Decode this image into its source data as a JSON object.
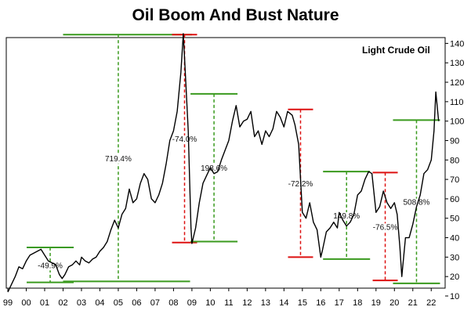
{
  "title": "Oil Boom And Bust Nature",
  "chart_data": {
    "type": "line",
    "title": "Oil Boom And Bust Nature",
    "series_label": "Light Crude Oil",
    "x_tick_labels": [
      "99",
      "00",
      "01",
      "02",
      "03",
      "04",
      "05",
      "06",
      "07",
      "08",
      "09",
      "10",
      "11",
      "12",
      "13",
      "14",
      "15",
      "16",
      "17",
      "18",
      "19",
      "20",
      "21",
      "22"
    ],
    "y_tick_labels": [
      "10",
      "20",
      "30",
      "40",
      "50",
      "60",
      "70",
      "80",
      "90",
      "100",
      "110",
      "120",
      "130",
      "140"
    ],
    "xlim": [
      1999.0,
      2022.5
    ],
    "ylim": [
      10,
      145
    ],
    "y_axis_side": "right",
    "colors": {
      "line": "#000000",
      "boom": "#3a9a1e",
      "bust": "#dd1111"
    },
    "series": [
      {
        "name": "Light Crude Oil",
        "x": [
          1999.0,
          1999.2,
          1999.4,
          1999.6,
          1999.8,
          2000.0,
          2000.2,
          2000.4,
          2000.6,
          2000.8,
          2001.0,
          2001.2,
          2001.4,
          2001.6,
          2001.8,
          2001.95,
          2002.1,
          2002.3,
          2002.5,
          2002.7,
          2002.9,
          2003.0,
          2003.2,
          2003.4,
          2003.6,
          2003.8,
          2004.0,
          2004.2,
          2004.4,
          2004.6,
          2004.8,
          2005.0,
          2005.2,
          2005.4,
          2005.6,
          2005.8,
          2006.0,
          2006.2,
          2006.4,
          2006.6,
          2006.8,
          2007.0,
          2007.2,
          2007.4,
          2007.6,
          2007.8,
          2008.0,
          2008.2,
          2008.4,
          2008.53,
          2008.65,
          2008.8,
          2008.95,
          2009.0,
          2009.2,
          2009.4,
          2009.6,
          2009.8,
          2010.0,
          2010.2,
          2010.4,
          2010.6,
          2010.8,
          2011.0,
          2011.2,
          2011.4,
          2011.6,
          2011.8,
          2012.0,
          2012.2,
          2012.4,
          2012.6,
          2012.8,
          2013.0,
          2013.2,
          2013.4,
          2013.6,
          2013.8,
          2014.0,
          2014.2,
          2014.45,
          2014.6,
          2014.8,
          2015.0,
          2015.2,
          2015.4,
          2015.6,
          2015.8,
          2016.0,
          2016.1,
          2016.3,
          2016.5,
          2016.7,
          2016.9,
          2017.0,
          2017.2,
          2017.4,
          2017.6,
          2017.8,
          2018.0,
          2018.2,
          2018.4,
          2018.6,
          2018.78,
          2019.0,
          2019.2,
          2019.4,
          2019.6,
          2019.8,
          2020.0,
          2020.15,
          2020.3,
          2020.4,
          2020.6,
          2020.8,
          2021.0,
          2021.2,
          2021.4,
          2021.6,
          2021.8,
          2022.0,
          2022.15,
          2022.25,
          2022.4
        ],
        "y": [
          12,
          16,
          20,
          25,
          24,
          28,
          31,
          32,
          33,
          34,
          31,
          28,
          27,
          26,
          21,
          19,
          21,
          25,
          26,
          28,
          26,
          30,
          28,
          27,
          29,
          30,
          33,
          35,
          38,
          44,
          49,
          45,
          52,
          55,
          65,
          58,
          60,
          68,
          73,
          70,
          60,
          58,
          62,
          68,
          78,
          90,
          95,
          105,
          125,
          145,
          123,
          95,
          45,
          37,
          45,
          58,
          68,
          72,
          76,
          73,
          74,
          80,
          85,
          90,
          100,
          108,
          97,
          100,
          101,
          105,
          92,
          95,
          88,
          95,
          92,
          96,
          105,
          102,
          97,
          105,
          103,
          98,
          88,
          53,
          50,
          58,
          48,
          44,
          30,
          34,
          43,
          45,
          48,
          45,
          53,
          49,
          46,
          48,
          52,
          62,
          64,
          70,
          74,
          73,
          53,
          56,
          64,
          58,
          55,
          58,
          52,
          35,
          20,
          40,
          40,
          47,
          56,
          62,
          73,
          75,
          80,
          95,
          115,
          100
        ]
      }
    ],
    "annotations": [
      {
        "type": "boom",
        "label": "-49.9%",
        "x": 2001.3,
        "y_from": 17,
        "y_to": 35,
        "side": "right"
      },
      {
        "type": "boom",
        "label": "719.4%",
        "x": 2005.0,
        "y_from": 17.5,
        "y_to": 144.5
      },
      {
        "type": "bust",
        "label": "-74.0%",
        "x": 2008.6,
        "y_from": 37.5,
        "y_to": 144.5
      },
      {
        "type": "boom",
        "label": "198.6%",
        "x": 2010.2,
        "y_from": 38,
        "y_to": 114
      },
      {
        "type": "bust",
        "label": "-72.2%",
        "x": 2014.9,
        "y_from": 30,
        "y_to": 106
      },
      {
        "type": "boom",
        "label": "149.8%",
        "x": 2017.4,
        "y_from": 29,
        "y_to": 74
      },
      {
        "type": "bust",
        "label": "-76.5%",
        "x": 2019.5,
        "y_from": 18,
        "y_to": 73.5
      },
      {
        "type": "boom",
        "label": "508.8%",
        "x": 2021.2,
        "y_from": 16.5,
        "y_to": 100.5
      }
    ]
  }
}
